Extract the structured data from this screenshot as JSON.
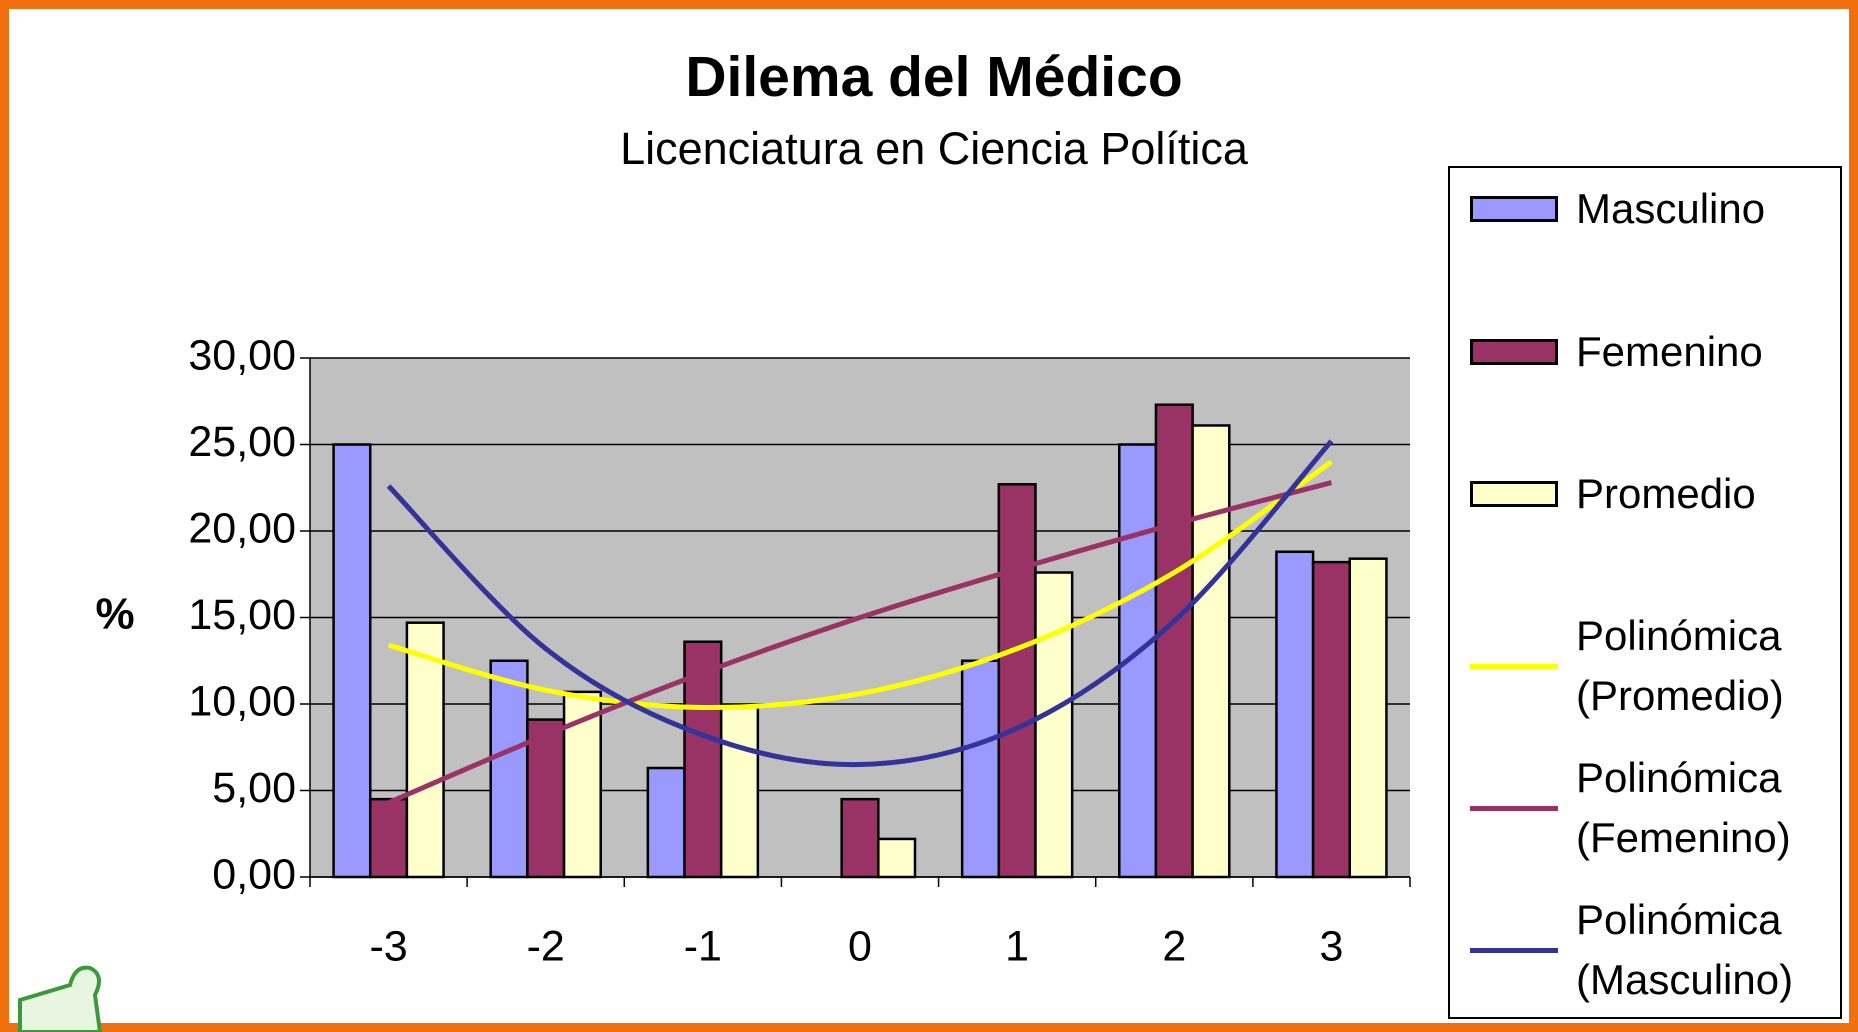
{
  "chart_data": {
    "type": "bar",
    "title": "Dilema del Médico",
    "subtitle": "Licenciatura en Ciencia Política",
    "y_label": "%",
    "categories": [
      "-3",
      "-2",
      "-1",
      "0",
      "1",
      "2",
      "3"
    ],
    "series": [
      {
        "name": "Masculino",
        "kind": "bar",
        "color": "#9999ff",
        "values": [
          25.0,
          12.5,
          6.3,
          0,
          12.5,
          25.0,
          18.8
        ]
      },
      {
        "name": "Femenino",
        "kind": "bar",
        "color": "#993366",
        "values": [
          4.5,
          9.1,
          13.6,
          4.5,
          22.7,
          27.3,
          18.2
        ]
      },
      {
        "name": "Promedio",
        "kind": "bar",
        "color": "#ffffcc",
        "values": [
          14.7,
          10.7,
          9.9,
          2.2,
          17.6,
          26.1,
          18.4
        ]
      },
      {
        "name": "Polinómica (Promedio)",
        "kind": "line",
        "color": "#ffff00",
        "values": [
          13.4,
          10.8,
          9.8,
          10.6,
          13.2,
          17.6,
          24.0
        ]
      },
      {
        "name": "Polinómica (Femenino)",
        "kind": "line",
        "color": "#993366",
        "values": [
          4.3,
          8.2,
          11.8,
          15.0,
          17.8,
          20.4,
          22.8
        ]
      },
      {
        "name": "Polinómica (Masculino)",
        "kind": "line",
        "color": "#333399",
        "values": [
          22.6,
          13.2,
          8.2,
          6.5,
          8.6,
          14.8,
          25.2
        ]
      }
    ],
    "ylim": [
      0,
      30
    ],
    "yticks": [
      {
        "value": 0,
        "label": "0,00"
      },
      {
        "value": 5,
        "label": "5,00"
      },
      {
        "value": 10,
        "label": "10,00"
      },
      {
        "value": 15,
        "label": "15,00"
      },
      {
        "value": 20,
        "label": "20,00"
      },
      {
        "value": 25,
        "label": "25,00"
      },
      {
        "value": 30,
        "label": "30,00"
      }
    ],
    "grid": true,
    "plot_background": "#c0c0c0",
    "legend": "right"
  }
}
